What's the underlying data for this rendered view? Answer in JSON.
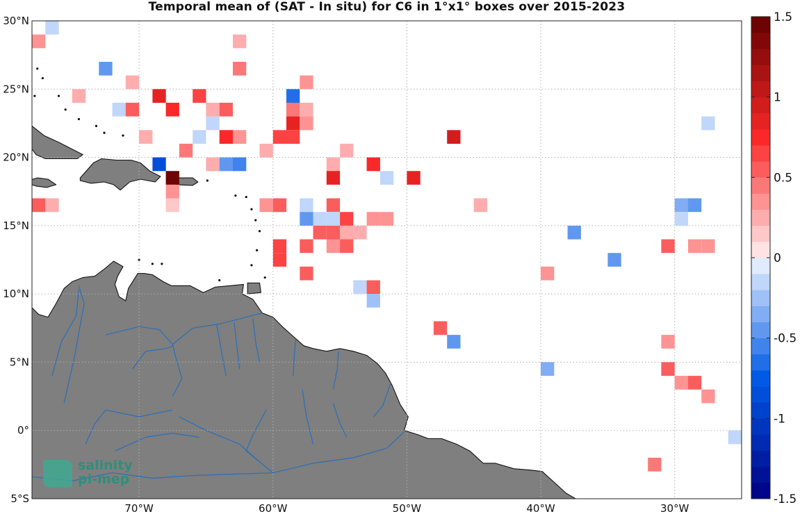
{
  "title": "Temporal mean of (SAT - In situ) for C6 in 1°x1° boxes over 2015-2023",
  "map": {
    "lon_range": [
      -78,
      -25
    ],
    "lat_range": [
      -5,
      30
    ],
    "lon_ticks": [
      {
        "value": -70,
        "label": "70°W"
      },
      {
        "value": -60,
        "label": "60°W"
      },
      {
        "value": -50,
        "label": "50°W"
      },
      {
        "value": -40,
        "label": "40°W"
      },
      {
        "value": -30,
        "label": "30°W"
      }
    ],
    "lat_ticks": [
      {
        "value": 30,
        "label": "30°N"
      },
      {
        "value": 25,
        "label": "25°N"
      },
      {
        "value": 20,
        "label": "20°N"
      },
      {
        "value": 15,
        "label": "15°N"
      },
      {
        "value": 10,
        "label": "10°N"
      },
      {
        "value": 5,
        "label": "5°N"
      },
      {
        "value": 0,
        "label": "0°"
      },
      {
        "value": -5,
        "label": "5°S"
      }
    ],
    "grid": "dotted",
    "land_color": "#7f7f7f",
    "river_color": "#2a6fb8"
  },
  "colorbar": {
    "range": [
      -1.5,
      1.5
    ],
    "steps": 30,
    "ticks": [
      {
        "value": 1.5,
        "label": "1.5"
      },
      {
        "value": 1,
        "label": "1"
      },
      {
        "value": 0.5,
        "label": "0.5"
      },
      {
        "value": 0,
        "label": "0"
      },
      {
        "value": -0.5,
        "label": "-0.5"
      },
      {
        "value": -1,
        "label": "-1"
      },
      {
        "value": -1.5,
        "label": "-1.5"
      }
    ]
  },
  "chart_data": {
    "type": "heatmap",
    "title": "Temporal mean of (SAT - In situ) for C6 in 1°x1° boxes over 2015-2023",
    "xlabel": "",
    "ylabel": "",
    "x_unit": "longitude (°E, negative = W)",
    "y_unit": "latitude (°N)",
    "cell_size_deg": 1,
    "xlim": [
      -78,
      -25
    ],
    "ylim": [
      -5,
      30
    ],
    "clim": [
      -1.5,
      1.5
    ],
    "cells": [
      {
        "lon": -77.5,
        "lat": 28.5,
        "value": 0.35
      },
      {
        "lon": -76.5,
        "lat": 29.5,
        "value": -0.15
      },
      {
        "lon": -72.5,
        "lat": 26.5,
        "value": -0.45
      },
      {
        "lon": -62.5,
        "lat": 28.5,
        "value": 0.2
      },
      {
        "lon": -62.5,
        "lat": 26.5,
        "value": 0.45
      },
      {
        "lon": -74.5,
        "lat": 24.5,
        "value": 0.25
      },
      {
        "lon": -70.5,
        "lat": 25.5,
        "value": 0.25
      },
      {
        "lon": -68.5,
        "lat": 24.5,
        "value": 0.85
      },
      {
        "lon": -65.5,
        "lat": 24.5,
        "value": 0.6
      },
      {
        "lon": -57.5,
        "lat": 25.5,
        "value": 0.3
      },
      {
        "lon": -58.5,
        "lat": 24.5,
        "value": -0.65
      },
      {
        "lon": -71.5,
        "lat": 23.5,
        "value": -0.15
      },
      {
        "lon": -70.5,
        "lat": 23.5,
        "value": 0.5
      },
      {
        "lon": -67.5,
        "lat": 23.5,
        "value": 0.7
      },
      {
        "lon": -64.5,
        "lat": 23.5,
        "value": 0.2
      },
      {
        "lon": -63.5,
        "lat": 23.5,
        "value": 0.5
      },
      {
        "lon": -58.5,
        "lat": 23.5,
        "value": 0.4
      },
      {
        "lon": -57.5,
        "lat": 23.5,
        "value": 0.2
      },
      {
        "lon": -64.5,
        "lat": 22.5,
        "value": -0.15
      },
      {
        "lon": -58.5,
        "lat": 22.5,
        "value": 0.85
      },
      {
        "lon": -57.5,
        "lat": 22.5,
        "value": 0.35
      },
      {
        "lon": -27.5,
        "lat": 22.5,
        "value": -0.15
      },
      {
        "lon": -69.5,
        "lat": 21.5,
        "value": 0.25
      },
      {
        "lon": -65.5,
        "lat": 21.5,
        "value": -0.15
      },
      {
        "lon": -63.5,
        "lat": 21.5,
        "value": 0.7
      },
      {
        "lon": -62.5,
        "lat": 21.5,
        "value": 0.3
      },
      {
        "lon": -59.5,
        "lat": 21.5,
        "value": 0.6
      },
      {
        "lon": -58.5,
        "lat": 21.5,
        "value": 0.6
      },
      {
        "lon": -46.5,
        "lat": 21.5,
        "value": 0.95
      },
      {
        "lon": -66.5,
        "lat": 20.5,
        "value": 0.4
      },
      {
        "lon": -60.5,
        "lat": 20.5,
        "value": 0.2
      },
      {
        "lon": -54.5,
        "lat": 20.5,
        "value": 0.2
      },
      {
        "lon": -68.5,
        "lat": 19.5,
        "value": -0.85
      },
      {
        "lon": -64.5,
        "lat": 19.5,
        "value": 0.2
      },
      {
        "lon": -63.5,
        "lat": 19.5,
        "value": -0.45
      },
      {
        "lon": -62.5,
        "lat": 19.5,
        "value": -0.55
      },
      {
        "lon": -55.5,
        "lat": 19.5,
        "value": 0.2
      },
      {
        "lon": -52.5,
        "lat": 19.5,
        "value": 0.7
      },
      {
        "lon": -67.5,
        "lat": 18.5,
        "value": 1.5
      },
      {
        "lon": -55.5,
        "lat": 18.5,
        "value": 0.9
      },
      {
        "lon": -51.5,
        "lat": 18.5,
        "value": -0.15
      },
      {
        "lon": -49.5,
        "lat": 18.5,
        "value": 0.8
      },
      {
        "lon": -67.5,
        "lat": 17.5,
        "value": 0.3
      },
      {
        "lon": -77.5,
        "lat": 16.5,
        "value": 0.5
      },
      {
        "lon": -76.5,
        "lat": 16.5,
        "value": 0.2
      },
      {
        "lon": -67.5,
        "lat": 16.5,
        "value": 0.15
      },
      {
        "lon": -60.5,
        "lat": 16.5,
        "value": 0.35
      },
      {
        "lon": -59.5,
        "lat": 16.5,
        "value": 0.5
      },
      {
        "lon": -57.5,
        "lat": 16.5,
        "value": -0.15
      },
      {
        "lon": -55.5,
        "lat": 16.5,
        "value": 0.5
      },
      {
        "lon": -44.5,
        "lat": 16.5,
        "value": 0.2
      },
      {
        "lon": -29.5,
        "lat": 16.5,
        "value": -0.35
      },
      {
        "lon": -28.5,
        "lat": 16.5,
        "value": -0.5
      },
      {
        "lon": -57.5,
        "lat": 15.5,
        "value": -0.45
      },
      {
        "lon": -56.5,
        "lat": 15.5,
        "value": -0.15
      },
      {
        "lon": -55.5,
        "lat": 15.5,
        "value": -0.15
      },
      {
        "lon": -54.5,
        "lat": 15.5,
        "value": 0.6
      },
      {
        "lon": -52.5,
        "lat": 15.5,
        "value": 0.3
      },
      {
        "lon": -51.5,
        "lat": 15.5,
        "value": 0.3
      },
      {
        "lon": -29.5,
        "lat": 15.5,
        "value": -0.2
      },
      {
        "lon": -56.5,
        "lat": 14.5,
        "value": 0.5
      },
      {
        "lon": -55.5,
        "lat": 14.5,
        "value": 0.5
      },
      {
        "lon": -54.5,
        "lat": 14.5,
        "value": 0.2
      },
      {
        "lon": -53.5,
        "lat": 14.5,
        "value": 0.2
      },
      {
        "lon": -37.5,
        "lat": 14.5,
        "value": -0.45
      },
      {
        "lon": -59.5,
        "lat": 13.5,
        "value": 0.6
      },
      {
        "lon": -57.5,
        "lat": 13.5,
        "value": 0.5
      },
      {
        "lon": -55.5,
        "lat": 13.5,
        "value": 0.35
      },
      {
        "lon": -54.5,
        "lat": 13.5,
        "value": 0.5
      },
      {
        "lon": -30.5,
        "lat": 13.5,
        "value": 0.5
      },
      {
        "lon": -28.5,
        "lat": 13.5,
        "value": 0.3
      },
      {
        "lon": -27.5,
        "lat": 13.5,
        "value": 0.3
      },
      {
        "lon": -59.5,
        "lat": 12.5,
        "value": 0.6
      },
      {
        "lon": -34.5,
        "lat": 12.5,
        "value": -0.5
      },
      {
        "lon": -57.5,
        "lat": 11.5,
        "value": 0.5
      },
      {
        "lon": -39.5,
        "lat": 11.5,
        "value": 0.3
      },
      {
        "lon": -53.5,
        "lat": 10.5,
        "value": -0.15
      },
      {
        "lon": -52.5,
        "lat": 10.5,
        "value": 0.55
      },
      {
        "lon": -52.5,
        "lat": 9.5,
        "value": -0.25
      },
      {
        "lon": -47.5,
        "lat": 7.5,
        "value": 0.55
      },
      {
        "lon": -46.5,
        "lat": 6.5,
        "value": -0.45
      },
      {
        "lon": -30.5,
        "lat": 6.5,
        "value": 0.35
      },
      {
        "lon": -39.5,
        "lat": 4.5,
        "value": -0.4
      },
      {
        "lon": -30.5,
        "lat": 4.5,
        "value": 0.5
      },
      {
        "lon": -29.5,
        "lat": 3.5,
        "value": 0.35
      },
      {
        "lon": -28.5,
        "lat": 3.5,
        "value": 0.5
      },
      {
        "lon": -27.5,
        "lat": 2.5,
        "value": 0.35
      },
      {
        "lon": -25.5,
        "lat": -0.5,
        "value": -0.2
      },
      {
        "lon": -31.5,
        "lat": -2.5,
        "value": 0.45
      }
    ]
  },
  "logo": {
    "line1": "salinity",
    "line2": "pi-mep"
  }
}
